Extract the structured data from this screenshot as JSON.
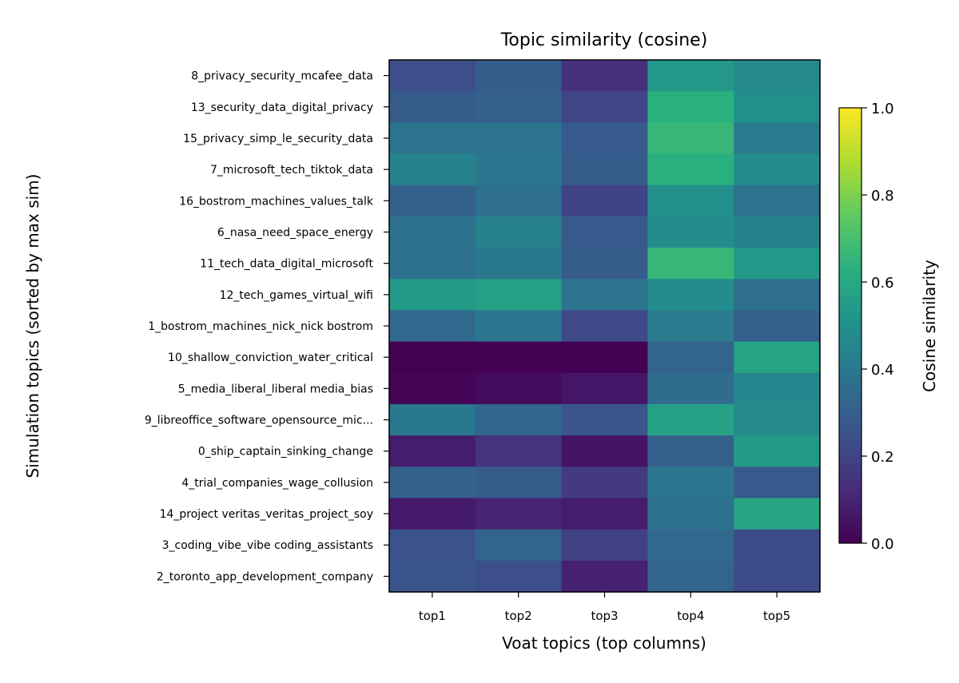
{
  "chart_data": {
    "type": "heatmap",
    "title": "Topic similarity (cosine)",
    "xlabel": "Voat topics (top columns)",
    "ylabel": "Simulation topics (sorted by max sim)",
    "columns": [
      "top1",
      "top2",
      "top3",
      "top4",
      "top5"
    ],
    "rows": [
      "8_privacy_security_mcafee_data",
      "13_security_data_digital_privacy",
      "15_privacy_simp_le_security_data",
      "7_microsoft_tech_tiktok_data",
      "16_bostrom_machines_values_talk",
      "6_nasa_need_space_energy",
      "11_tech_data_digital_microsoft",
      "12_tech_games_virtual_wifi",
      "1_bostrom_machines_nick_nick bostrom",
      "10_shallow_conviction_water_critical",
      "5_media_liberal_liberal media_bias",
      "9_libreoffice_software_opensource_mic...",
      "0_ship_captain_sinking_change",
      "4_trial_companies_wage_collusion",
      "14_project veritas_veritas_project_soy",
      "3_coding_vibe_vibe coding_assistants",
      "2_toronto_app_development_company"
    ],
    "values": [
      [
        0.24,
        0.29,
        0.14,
        0.53,
        0.47
      ],
      [
        0.29,
        0.3,
        0.21,
        0.63,
        0.49
      ],
      [
        0.38,
        0.38,
        0.28,
        0.66,
        0.41
      ],
      [
        0.44,
        0.39,
        0.29,
        0.63,
        0.48
      ],
      [
        0.31,
        0.36,
        0.2,
        0.49,
        0.38
      ],
      [
        0.37,
        0.43,
        0.28,
        0.48,
        0.44
      ],
      [
        0.37,
        0.4,
        0.29,
        0.66,
        0.53
      ],
      [
        0.54,
        0.57,
        0.38,
        0.48,
        0.36
      ],
      [
        0.34,
        0.39,
        0.22,
        0.41,
        0.3
      ],
      [
        0.0,
        0.0,
        0.0,
        0.32,
        0.58
      ],
      [
        0.01,
        0.03,
        0.06,
        0.35,
        0.46
      ],
      [
        0.4,
        0.33,
        0.26,
        0.57,
        0.47
      ],
      [
        0.08,
        0.15,
        0.05,
        0.31,
        0.54
      ],
      [
        0.31,
        0.29,
        0.17,
        0.39,
        0.28
      ],
      [
        0.07,
        0.1,
        0.08,
        0.37,
        0.59
      ],
      [
        0.25,
        0.32,
        0.19,
        0.34,
        0.23
      ],
      [
        0.26,
        0.24,
        0.09,
        0.32,
        0.23
      ]
    ],
    "colormap": "viridis",
    "vmin": 0.0,
    "vmax": 1.0,
    "colorbar": {
      "label": "Cosine similarity",
      "ticks": [
        0.0,
        0.2,
        0.4,
        0.6,
        0.8,
        1.0
      ],
      "tick_labels": [
        "0.0",
        "0.2",
        "0.4",
        "0.6",
        "0.8",
        "1.0"
      ]
    },
    "grid": false
  }
}
